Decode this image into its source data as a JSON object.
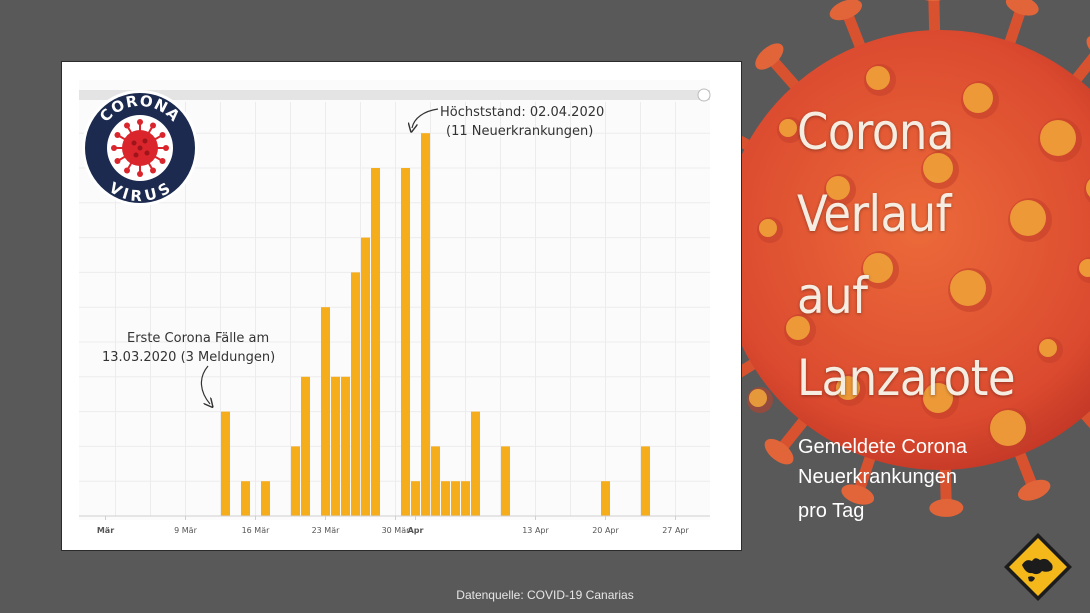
{
  "chart_data": {
    "type": "bar",
    "title": "",
    "xlabel": "",
    "ylabel": "",
    "ylim": [
      0,
      12
    ],
    "grid": true,
    "bar_color": "#f5ad1c",
    "x_ticks": [
      {
        "day": 0,
        "label": "Mär",
        "bold": true
      },
      {
        "day": 8,
        "label": "9 Mär",
        "bold": false
      },
      {
        "day": 15,
        "label": "16 Mär",
        "bold": false
      },
      {
        "day": 22,
        "label": "23 Mär",
        "bold": false
      },
      {
        "day": 29,
        "label": "30 Mär",
        "bold": false
      },
      {
        "day": 31,
        "label": "Apr",
        "bold": true
      },
      {
        "day": 43,
        "label": "13 Apr",
        "bold": false
      },
      {
        "day": 50,
        "label": "20 Apr",
        "bold": false
      },
      {
        "day": 57,
        "label": "27 Apr",
        "bold": false
      }
    ],
    "x": [
      "13.03.",
      "14.03.",
      "15.03.",
      "16.03.",
      "17.03.",
      "18.03.",
      "19.03.",
      "20.03.",
      "21.03.",
      "22.03.",
      "23.03.",
      "24.03.",
      "25.03.",
      "26.03.",
      "27.03.",
      "28.03.",
      "29.03.",
      "30.03.",
      "31.03.",
      "01.04.",
      "02.04.",
      "03.04.",
      "04.04.",
      "05.04.",
      "06.04.",
      "07.04.",
      "08.04.",
      "09.04.",
      "10.04.",
      "11.04.",
      "12.04.",
      "13.04.",
      "14.04.",
      "15.04.",
      "16.04.",
      "17.04.",
      "18.04.",
      "19.04.",
      "20.04.",
      "21.04.",
      "22.04.",
      "23.04.",
      "24.04."
    ],
    "values": [
      3,
      0,
      1,
      0,
      1,
      0,
      0,
      2,
      4,
      0,
      6,
      4,
      4,
      7,
      8,
      10,
      0,
      0,
      10,
      1,
      11,
      2,
      1,
      1,
      1,
      3,
      0,
      0,
      2,
      0,
      0,
      0,
      0,
      0,
      0,
      0,
      0,
      0,
      1,
      0,
      0,
      0,
      2
    ],
    "first_bar_day": 12,
    "annotations": [
      {
        "line1": "Höchststand: 02.04.2020",
        "line2": "(11 Neuerkrankungen)"
      },
      {
        "line1": "Erste Corona Fälle am",
        "line2": "13.03.2020 (3 Meldungen)"
      }
    ]
  },
  "badge": {
    "top": "CORONA",
    "bottom": "VIRUS"
  },
  "headline": [
    "Corona",
    "Verlauf",
    "auf",
    "Lanzarote"
  ],
  "subline": [
    "Gemeldete Corona",
    "Neuerkrankungen",
    "pro Tag"
  ],
  "source": "Datenquelle: COVID-19 Canarias",
  "colors": {
    "background": "#595959",
    "virus": "#e0573a",
    "headline": "#f6ede2"
  },
  "icons": [
    "coronavirus-illustration",
    "corona-virus-badge",
    "site-logo"
  ]
}
